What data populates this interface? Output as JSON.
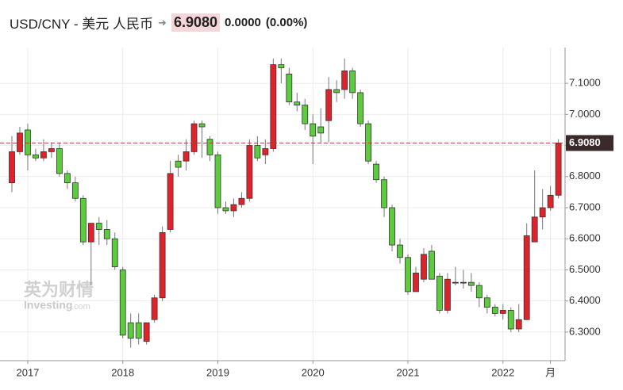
{
  "chart_data": {
    "type": "candlestick",
    "title": "USD/CNY - 美元 人民币",
    "change": "0.0000",
    "change_pct": "(0.00%)",
    "watermark": {
      "main": "英为财情",
      "sub": "Investing",
      "sub2": ".com"
    },
    "categories": [
      null,
      null,
      "2017",
      null,
      null,
      null,
      null,
      null,
      null,
      null,
      null,
      null,
      null,
      null,
      "2018",
      null,
      null,
      null,
      null,
      null,
      null,
      null,
      null,
      null,
      null,
      null,
      "2019",
      null,
      null,
      null,
      null,
      null,
      null,
      null,
      null,
      null,
      null,
      null,
      "2020",
      null,
      null,
      null,
      null,
      null,
      null,
      null,
      null,
      null,
      null,
      null,
      "2021",
      null,
      null,
      null,
      null,
      null,
      null,
      null,
      null,
      null,
      null,
      null,
      "2022",
      null,
      null,
      null,
      null,
      null,
      "月",
      null
    ],
    "open": [
      6.78,
      6.88,
      6.95,
      6.87,
      6.86,
      6.88,
      6.89,
      6.81,
      6.78,
      6.73,
      6.59,
      6.65,
      6.63,
      6.6,
      6.5,
      6.33,
      6.33,
      6.27,
      6.34,
      6.41,
      6.63,
      6.85,
      6.85,
      6.88,
      6.97,
      6.92,
      6.87,
      6.7,
      6.69,
      6.71,
      6.73,
      6.9,
      6.87,
      6.89,
      7.16,
      7.13,
      7.04,
      7.03,
      6.97,
      6.96,
      6.98,
      7.08,
      7.08,
      7.14,
      7.07,
      6.97,
      6.84,
      6.79,
      6.7,
      6.58,
      6.54,
      6.43,
      6.47,
      6.56,
      6.48,
      6.37,
      6.46,
      6.46,
      6.46,
      6.45,
      6.41,
      6.38,
      6.36,
      6.37,
      6.31,
      6.34,
      6.59,
      6.67,
      6.7,
      6.74
    ],
    "high": [
      6.93,
      6.96,
      6.97,
      6.89,
      6.92,
      6.91,
      6.91,
      6.82,
      6.8,
      6.74,
      6.65,
      6.67,
      6.66,
      6.62,
      6.51,
      6.36,
      6.36,
      6.33,
      6.42,
      6.64,
      6.85,
      6.87,
      6.92,
      6.98,
      6.98,
      6.93,
      6.88,
      6.72,
      6.73,
      6.75,
      6.92,
      6.93,
      6.92,
      7.18,
      7.18,
      7.15,
      7.07,
      7.05,
      7.0,
      7.02,
      7.12,
      7.11,
      7.18,
      7.15,
      7.08,
      6.98,
      6.85,
      6.8,
      6.71,
      6.6,
      6.55,
      6.51,
      6.57,
      6.58,
      6.49,
      6.49,
      6.51,
      6.5,
      6.49,
      6.46,
      6.42,
      6.39,
      6.39,
      6.38,
      6.39,
      6.65,
      6.82,
      6.76,
      6.77,
      6.92
    ],
    "low": [
      6.75,
      6.87,
      6.82,
      6.85,
      6.85,
      6.86,
      6.8,
      6.76,
      6.72,
      6.58,
      6.45,
      6.58,
      6.58,
      6.5,
      6.28,
      6.25,
      6.26,
      6.26,
      6.33,
      6.4,
      6.62,
      6.8,
      6.82,
      6.87,
      6.86,
      6.85,
      6.68,
      6.68,
      6.67,
      6.7,
      6.72,
      6.85,
      6.84,
      6.88,
      7.1,
      7.03,
      7.01,
      6.95,
      6.84,
      6.91,
      6.91,
      7.04,
      7.05,
      7.05,
      6.96,
      6.84,
      6.78,
      6.67,
      6.56,
      6.52,
      6.42,
      6.43,
      6.46,
      6.47,
      6.36,
      6.36,
      6.45,
      6.44,
      6.43,
      6.38,
      6.36,
      6.35,
      6.34,
      6.3,
      6.3,
      6.34,
      6.59,
      6.63,
      6.69,
      6.73
    ],
    "close": [
      6.88,
      6.94,
      6.87,
      6.86,
      6.88,
      6.89,
      6.81,
      6.78,
      6.73,
      6.59,
      6.65,
      6.63,
      6.6,
      6.51,
      6.29,
      6.28,
      6.28,
      6.33,
      6.41,
      6.62,
      6.81,
      6.83,
      6.88,
      6.97,
      6.96,
      6.87,
      6.7,
      6.69,
      6.71,
      6.73,
      6.9,
      6.86,
      6.89,
      7.16,
      7.15,
      7.04,
      7.03,
      6.97,
      6.93,
      6.94,
      7.08,
      7.07,
      7.14,
      7.07,
      6.97,
      6.85,
      6.79,
      6.7,
      6.58,
      6.54,
      6.43,
      6.49,
      6.55,
      6.47,
      6.37,
      6.47,
      6.46,
      6.46,
      6.45,
      6.41,
      6.38,
      6.36,
      6.37,
      6.31,
      6.34,
      6.61,
      6.67,
      6.7,
      6.74,
      6.908
    ],
    "up_color": "#e0232b",
    "down_color": "#5ccb3c",
    "reference_line": {
      "value": 6.908,
      "label": "6.9080"
    },
    "ylim": [
      6.208,
      7.215
    ],
    "yticks": [
      {
        "value": 6.3,
        "label": "6.3000"
      },
      {
        "value": 6.4,
        "label": "6.4000"
      },
      {
        "value": 6.5,
        "label": "6.5000"
      },
      {
        "value": 6.6,
        "label": "6.6000"
      },
      {
        "value": 6.7,
        "label": "6.7000"
      },
      {
        "value": 6.8,
        "label": "6.8000"
      },
      {
        "value": 6.9,
        "label": "6.9000"
      },
      {
        "value": 7.0,
        "label": "7.0000"
      },
      {
        "value": 7.1,
        "label": "7.1000"
      }
    ],
    "grid": true
  }
}
